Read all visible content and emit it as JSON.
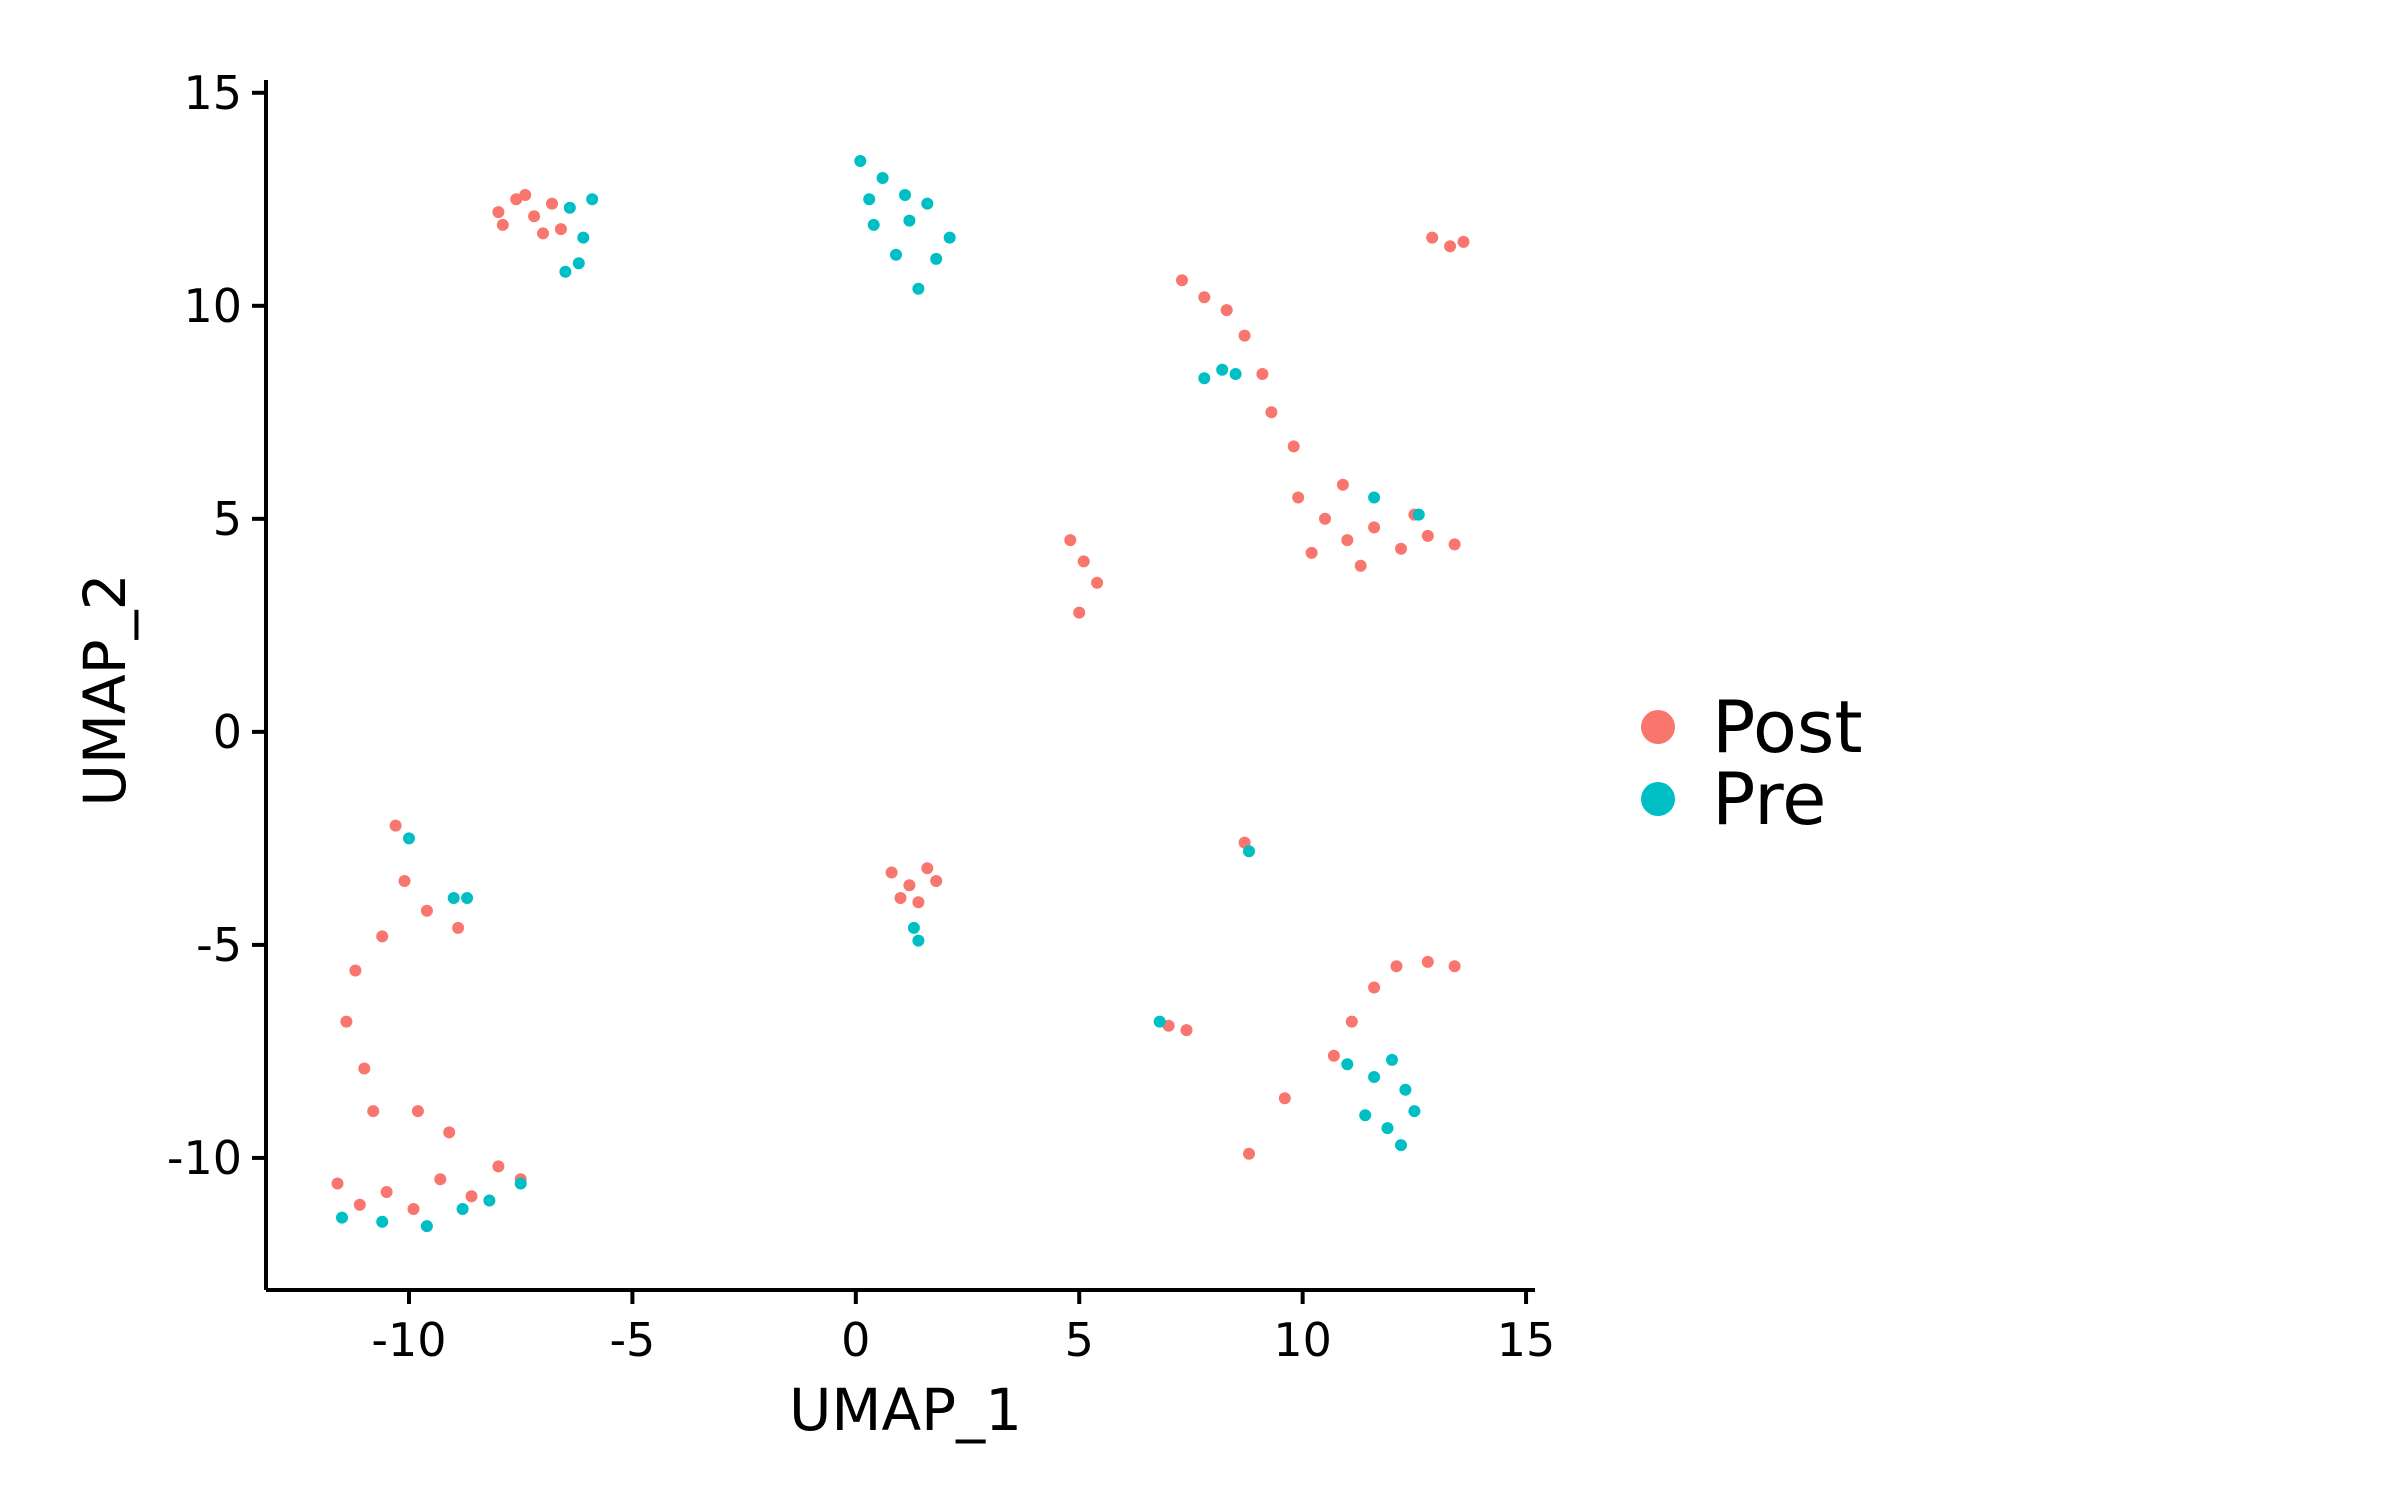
{
  "chart_data": {
    "type": "scatter",
    "title": "",
    "xlabel": "UMAP_1",
    "ylabel": "UMAP_2",
    "xlim": [
      -13.2,
      15.2
    ],
    "ylim": [
      -13.1,
      15.3
    ],
    "x_ticks": [
      -10,
      -5,
      0,
      5,
      10,
      15
    ],
    "y_ticks": [
      -10,
      -5,
      0,
      5,
      10,
      15
    ],
    "x_tick_labels": [
      "-10",
      "-5",
      "0",
      "5",
      "10",
      "15"
    ],
    "y_tick_labels": [
      "-10",
      "-5",
      "0",
      "5",
      "10",
      "15"
    ],
    "grid": false,
    "legend_placement": "right",
    "series": [
      {
        "name": "Post",
        "color": "#F8766D",
        "points": [
          [
            -8.0,
            12.2
          ],
          [
            -7.6,
            12.5
          ],
          [
            -7.2,
            12.1
          ],
          [
            -6.8,
            12.4
          ],
          [
            -6.6,
            11.8
          ],
          [
            -7.9,
            11.9
          ],
          [
            -7.4,
            12.6
          ],
          [
            -7.0,
            11.7
          ],
          [
            0.8,
            -3.3
          ],
          [
            1.2,
            -3.6
          ],
          [
            1.6,
            -3.2
          ],
          [
            1.4,
            -4.0
          ],
          [
            1.0,
            -3.9
          ],
          [
            1.8,
            -3.5
          ],
          [
            7.3,
            10.6
          ],
          [
            7.8,
            10.2
          ],
          [
            8.3,
            9.9
          ],
          [
            8.7,
            9.3
          ],
          [
            9.1,
            8.4
          ],
          [
            9.3,
            7.5
          ],
          [
            9.8,
            6.7
          ],
          [
            9.9,
            5.5
          ],
          [
            10.5,
            5.0
          ],
          [
            11.0,
            4.5
          ],
          [
            11.6,
            4.8
          ],
          [
            12.2,
            4.3
          ],
          [
            12.8,
            4.6
          ],
          [
            13.4,
            4.4
          ],
          [
            10.2,
            4.2
          ],
          [
            10.9,
            5.8
          ],
          [
            11.3,
            3.9
          ],
          [
            12.5,
            5.1
          ],
          [
            12.9,
            11.6
          ],
          [
            13.3,
            11.4
          ],
          [
            13.6,
            11.5
          ],
          [
            4.8,
            4.5
          ],
          [
            5.1,
            4.0
          ],
          [
            5.4,
            3.5
          ],
          [
            5.0,
            2.8
          ],
          [
            8.7,
            -2.6
          ],
          [
            7.0,
            -6.9
          ],
          [
            7.4,
            -7.0
          ],
          [
            10.7,
            -7.6
          ],
          [
            11.1,
            -6.8
          ],
          [
            11.6,
            -6.0
          ],
          [
            12.1,
            -5.5
          ],
          [
            12.8,
            -5.4
          ],
          [
            13.4,
            -5.5
          ],
          [
            9.6,
            -8.6
          ],
          [
            8.8,
            -9.9
          ],
          [
            -10.3,
            -2.2
          ],
          [
            -10.1,
            -3.5
          ],
          [
            -10.6,
            -4.8
          ],
          [
            -11.2,
            -5.6
          ],
          [
            -11.4,
            -6.8
          ],
          [
            -11.0,
            -7.9
          ],
          [
            -10.8,
            -8.9
          ],
          [
            -9.6,
            -4.2
          ],
          [
            -8.9,
            -4.6
          ],
          [
            -11.6,
            -10.6
          ],
          [
            -11.1,
            -11.1
          ],
          [
            -10.5,
            -10.8
          ],
          [
            -9.9,
            -11.2
          ],
          [
            -9.3,
            -10.5
          ],
          [
            -8.6,
            -10.9
          ],
          [
            -8.0,
            -10.2
          ],
          [
            -7.5,
            -10.5
          ],
          [
            -9.8,
            -8.9
          ],
          [
            -9.1,
            -9.4
          ]
        ]
      },
      {
        "name": "Pre",
        "color": "#00BFC4",
        "points": [
          [
            -6.4,
            12.3
          ],
          [
            -6.1,
            11.6
          ],
          [
            -6.5,
            10.8
          ],
          [
            -5.9,
            12.5
          ],
          [
            -6.2,
            11.0
          ],
          [
            0.1,
            13.4
          ],
          [
            0.6,
            13.0
          ],
          [
            1.1,
            12.6
          ],
          [
            1.6,
            12.4
          ],
          [
            2.1,
            11.6
          ],
          [
            0.4,
            11.9
          ],
          [
            0.9,
            11.2
          ],
          [
            1.4,
            10.4
          ],
          [
            1.8,
            11.1
          ],
          [
            0.3,
            12.5
          ],
          [
            1.2,
            12.0
          ],
          [
            7.8,
            8.3
          ],
          [
            8.2,
            8.5
          ],
          [
            8.5,
            8.4
          ],
          [
            11.6,
            5.5
          ],
          [
            12.6,
            5.1
          ],
          [
            8.8,
            -2.8
          ],
          [
            6.8,
            -6.8
          ],
          [
            1.3,
            -4.6
          ],
          [
            1.4,
            -4.9
          ],
          [
            11.0,
            -7.8
          ],
          [
            11.6,
            -8.1
          ],
          [
            12.0,
            -7.7
          ],
          [
            12.3,
            -8.4
          ],
          [
            12.5,
            -8.9
          ],
          [
            11.9,
            -9.3
          ],
          [
            12.2,
            -9.7
          ],
          [
            11.4,
            -9.0
          ],
          [
            -9.0,
            -3.9
          ],
          [
            -8.7,
            -3.9
          ],
          [
            -10.0,
            -2.5
          ],
          [
            -11.5,
            -11.4
          ],
          [
            -10.6,
            -11.5
          ],
          [
            -9.6,
            -11.6
          ],
          [
            -8.8,
            -11.2
          ],
          [
            -8.2,
            -11.0
          ],
          [
            -7.5,
            -10.6
          ]
        ]
      }
    ]
  }
}
